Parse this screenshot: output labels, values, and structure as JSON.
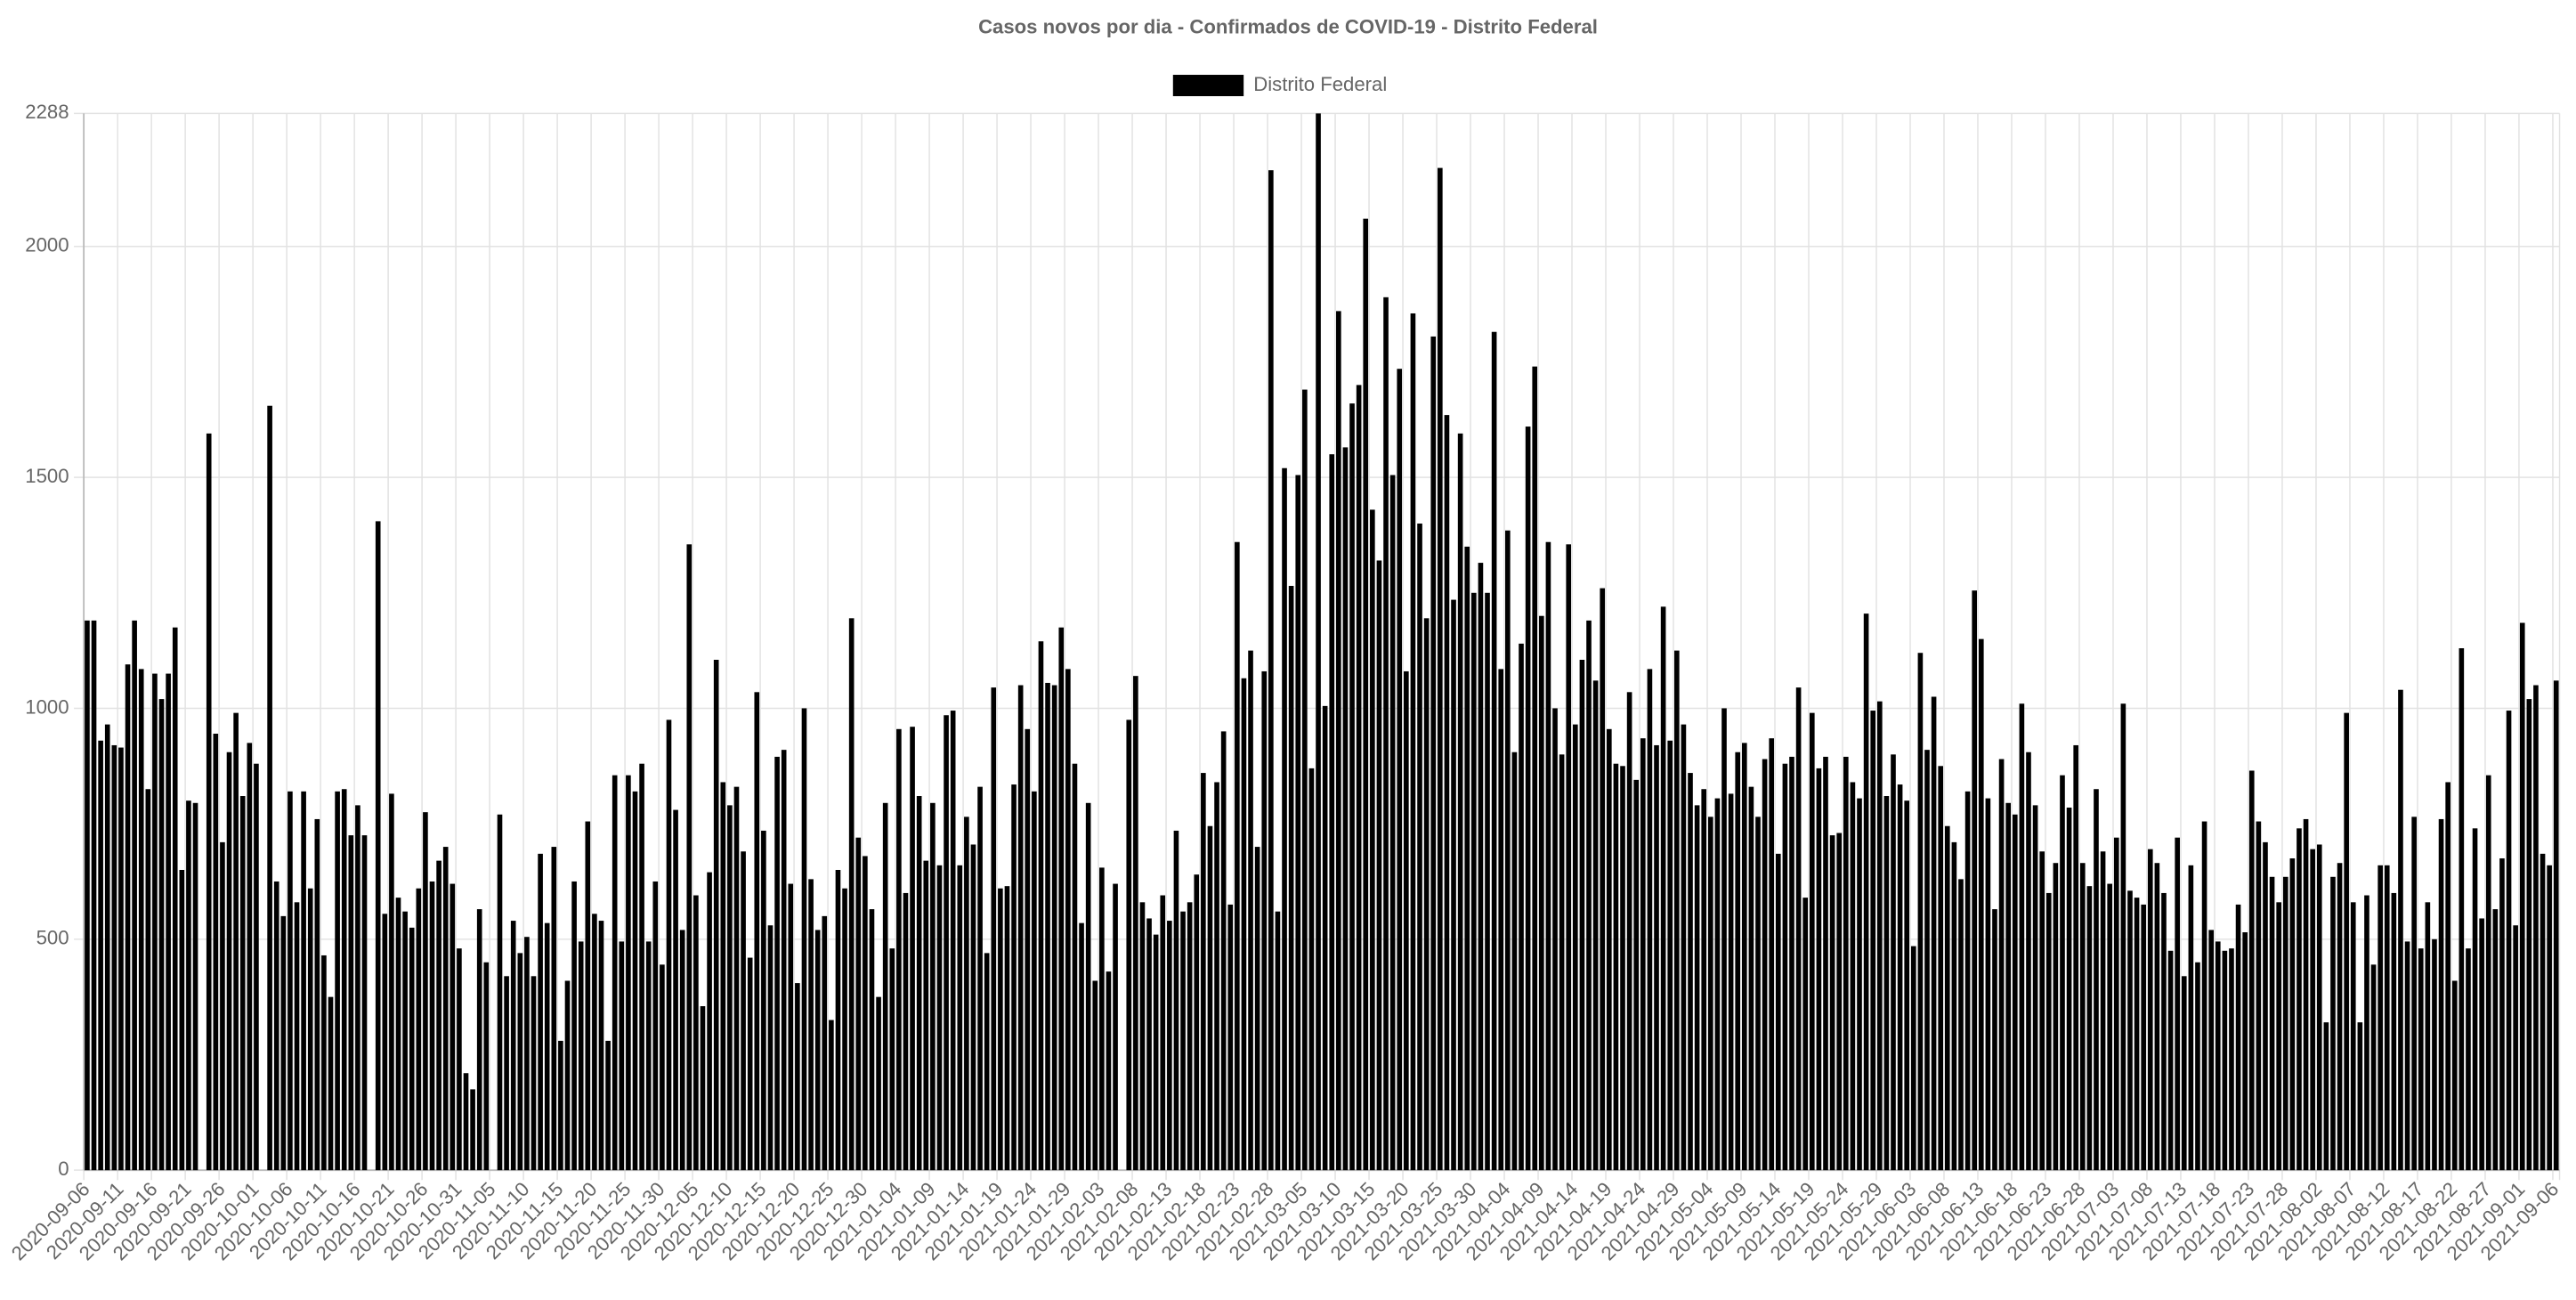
{
  "chart_data": {
    "type": "bar",
    "title": "Casos novos por dia - Confirmados de COVID-19 - Distrito Federal",
    "legend": "top",
    "grid": true,
    "ylim": [
      0,
      2288
    ],
    "yticks": [
      0,
      500,
      1000,
      1500,
      2000,
      2288
    ],
    "categories": [
      "2020-09-06",
      null,
      null,
      null,
      null,
      "2020-09-11",
      null,
      null,
      null,
      null,
      "2020-09-16",
      null,
      null,
      null,
      null,
      "2020-09-21",
      null,
      null,
      null,
      null,
      "2020-09-26",
      null,
      null,
      null,
      null,
      "2020-10-01",
      null,
      null,
      null,
      null,
      "2020-10-06",
      null,
      null,
      null,
      null,
      "2020-10-11",
      null,
      null,
      null,
      null,
      "2020-10-16",
      null,
      null,
      null,
      null,
      "2020-10-21",
      null,
      null,
      null,
      null,
      "2020-10-26",
      null,
      null,
      null,
      null,
      "2020-10-31",
      null,
      null,
      null,
      null,
      "2020-11-05",
      null,
      null,
      null,
      null,
      "2020-11-10",
      null,
      null,
      null,
      null,
      "2020-11-15",
      null,
      null,
      null,
      null,
      "2020-11-20",
      null,
      null,
      null,
      null,
      "2020-11-25",
      null,
      null,
      null,
      null,
      "2020-11-30",
      null,
      null,
      null,
      null,
      "2020-12-05",
      null,
      null,
      null,
      null,
      "2020-12-10",
      null,
      null,
      null,
      null,
      "2020-12-15",
      null,
      null,
      null,
      null,
      "2020-12-20",
      null,
      null,
      null,
      null,
      "2020-12-25",
      null,
      null,
      null,
      null,
      "2020-12-30",
      null,
      null,
      null,
      null,
      "2021-01-04",
      null,
      null,
      null,
      null,
      "2021-01-09",
      null,
      null,
      null,
      null,
      "2021-01-14",
      null,
      null,
      null,
      null,
      "2021-01-19",
      null,
      null,
      null,
      null,
      "2021-01-24",
      null,
      null,
      null,
      null,
      "2021-01-29",
      null,
      null,
      null,
      null,
      "2021-02-03",
      null,
      null,
      null,
      null,
      "2021-02-08",
      null,
      null,
      null,
      null,
      "2021-02-13",
      null,
      null,
      null,
      null,
      "2021-02-18",
      null,
      null,
      null,
      null,
      "2021-02-23",
      null,
      null,
      null,
      null,
      "2021-02-28",
      null,
      null,
      null,
      null,
      "2021-03-05",
      null,
      null,
      null,
      null,
      "2021-03-10",
      null,
      null,
      null,
      null,
      "2021-03-15",
      null,
      null,
      null,
      null,
      "2021-03-20",
      null,
      null,
      null,
      null,
      "2021-03-25",
      null,
      null,
      null,
      null,
      "2021-03-30",
      null,
      null,
      null,
      null,
      "2021-04-04",
      null,
      null,
      null,
      null,
      "2021-04-09",
      null,
      null,
      null,
      null,
      "2021-04-14",
      null,
      null,
      null,
      null,
      "2021-04-19",
      null,
      null,
      null,
      null,
      "2021-04-24",
      null,
      null,
      null,
      null,
      "2021-04-29",
      null,
      null,
      null,
      null,
      "2021-05-04",
      null,
      null,
      null,
      null,
      "2021-05-09",
      null,
      null,
      null,
      null,
      "2021-05-14",
      null,
      null,
      null,
      null,
      "2021-05-19",
      null,
      null,
      null,
      null,
      "2021-05-24",
      null,
      null,
      null,
      null,
      "2021-05-29",
      null,
      null,
      null,
      null,
      "2021-06-03",
      null,
      null,
      null,
      null,
      "2021-06-08",
      null,
      null,
      null,
      null,
      "2021-06-13",
      null,
      null,
      null,
      null,
      "2021-06-18",
      null,
      null,
      null,
      null,
      "2021-06-23",
      null,
      null,
      null,
      null,
      "2021-06-28",
      null,
      null,
      null,
      null,
      "2021-07-03",
      null,
      null,
      null,
      null,
      "2021-07-08",
      null,
      null,
      null,
      null,
      "2021-07-13",
      null,
      null,
      null,
      null,
      "2021-07-18",
      null,
      null,
      null,
      null,
      "2021-07-23",
      null,
      null,
      null,
      null,
      "2021-07-28",
      null,
      null,
      null,
      null,
      "2021-08-02",
      null,
      null,
      null,
      null,
      "2021-08-07",
      null,
      null,
      null,
      null,
      "2021-08-12",
      null,
      null,
      null,
      null,
      "2021-08-17",
      null,
      null,
      null,
      null,
      "2021-08-22",
      null,
      null,
      null,
      null,
      "2021-08-27",
      null,
      null,
      null,
      null,
      "2021-09-01",
      null,
      null,
      null,
      null,
      "2021-09-06"
    ],
    "series": [
      {
        "name": "Distrito Federal",
        "color": "#000000",
        "values": [
          1190,
          1190,
          930,
          965,
          920,
          915,
          1095,
          1190,
          1085,
          825,
          1075,
          1020,
          1075,
          1175,
          650,
          800,
          795,
          0,
          1595,
          945,
          710,
          905,
          990,
          810,
          925,
          880,
          0,
          1655,
          625,
          550,
          820,
          580,
          820,
          610,
          760,
          465,
          375,
          820,
          825,
          725,
          790,
          725,
          0,
          1405,
          555,
          815,
          590,
          560,
          525,
          610,
          775,
          625,
          670,
          700,
          620,
          480,
          210,
          175,
          565,
          450,
          0,
          770,
          420,
          540,
          470,
          505,
          420,
          685,
          535,
          700,
          280,
          410,
          625,
          495,
          755,
          555,
          540,
          280,
          855,
          495,
          855,
          820,
          880,
          495,
          625,
          445,
          975,
          780,
          520,
          1355,
          595,
          355,
          645,
          1105,
          840,
          790,
          830,
          690,
          460,
          1035,
          735,
          530,
          895,
          910,
          620,
          405,
          1000,
          630,
          520,
          550,
          325,
          650,
          610,
          1195,
          720,
          680,
          565,
          375,
          795,
          480,
          955,
          600,
          960,
          810,
          670,
          795,
          660,
          985,
          995,
          660,
          765,
          705,
          830,
          470,
          1045,
          610,
          615,
          835,
          1050,
          955,
          820,
          1145,
          1055,
          1050,
          1175,
          1085,
          880,
          535,
          795,
          410,
          655,
          430,
          620,
          0,
          975,
          1070,
          580,
          545,
          510,
          595,
          540,
          735,
          560,
          580,
          640,
          860,
          745,
          840,
          950,
          575,
          1360,
          1065,
          1125,
          700,
          1080,
          2165,
          560,
          1520,
          1265,
          1505,
          1690,
          870,
          2288,
          1005,
          1550,
          1860,
          1565,
          1660,
          1700,
          2060,
          1430,
          1320,
          1890,
          1505,
          1735,
          1080,
          1855,
          1400,
          1195,
          1805,
          2170,
          1635,
          1235,
          1595,
          1350,
          1250,
          1315,
          1250,
          1815,
          1085,
          1385,
          905,
          1140,
          1610,
          1740,
          1200,
          1360,
          1000,
          900,
          1355,
          965,
          1105,
          1190,
          1060,
          1260,
          955,
          880,
          875,
          1035,
          845,
          935,
          1085,
          920,
          1220,
          930,
          1125,
          965,
          860,
          790,
          825,
          765,
          805,
          1000,
          815,
          905,
          925,
          830,
          765,
          890,
          935,
          685,
          880,
          895,
          1045,
          590,
          990,
          870,
          895,
          725,
          730,
          895,
          840,
          805,
          1205,
          995,
          1015,
          810,
          900,
          835,
          800,
          485,
          1120,
          910,
          1025,
          875,
          745,
          710,
          630,
          820,
          1255,
          1150,
          805,
          565,
          890,
          795,
          770,
          1010,
          905,
          790,
          690,
          600,
          665,
          855,
          785,
          920,
          665,
          615,
          825,
          690,
          620,
          720,
          1010,
          605,
          590,
          575,
          695,
          665,
          600,
          475,
          720,
          420,
          660,
          450,
          755,
          520,
          495,
          475,
          480,
          575,
          515,
          865,
          755,
          710,
          635,
          580,
          635,
          675,
          740,
          760,
          695,
          705,
          320,
          635,
          665,
          990,
          580,
          320,
          595,
          445,
          660,
          660,
          600,
          1040,
          495,
          765,
          480,
          580,
          500,
          760,
          840,
          410,
          1130,
          480,
          740,
          545,
          855,
          565,
          675,
          995,
          530,
          1185,
          1020,
          1050,
          685,
          660,
          1060
        ]
      }
    ]
  }
}
